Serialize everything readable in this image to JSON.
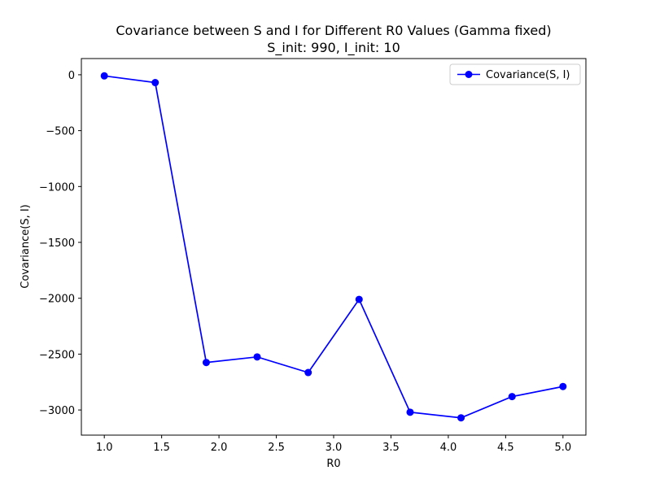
{
  "chart_data": {
    "type": "line",
    "title": "Covariance between S and I for Different R0 Values (Gamma fixed)",
    "subtitle": "S_init: 990, I_init: 10",
    "xlabel": "R0",
    "ylabel": "Covariance(S, I)",
    "xlim": [
      0.8,
      5.2
    ],
    "ylim": [
      -3225,
      145
    ],
    "xticks": [
      1.0,
      1.5,
      2.0,
      2.5,
      3.0,
      3.5,
      4.0,
      4.5,
      5.0
    ],
    "xtick_labels": [
      "1.0",
      "1.5",
      "2.0",
      "2.5",
      "3.0",
      "3.5",
      "4.0",
      "4.5",
      "5.0"
    ],
    "yticks": [
      0,
      -500,
      -1000,
      -1500,
      -2000,
      -2500,
      -3000
    ],
    "ytick_labels": [
      "0",
      "−500",
      "−1000",
      "−1500",
      "−2000",
      "−2500",
      "−3000"
    ],
    "grid": false,
    "legend_position": "top-right",
    "series": [
      {
        "name": "Covariance(S, I)",
        "color": "#0000ff",
        "marker": "circle",
        "x": [
          1.0,
          1.444,
          1.889,
          2.333,
          2.778,
          3.222,
          3.667,
          4.111,
          4.556,
          5.0
        ],
        "y": [
          -10,
          -70,
          -2575,
          -2525,
          -2665,
          -2010,
          -3020,
          -3070,
          -2880,
          -2790
        ]
      }
    ]
  }
}
